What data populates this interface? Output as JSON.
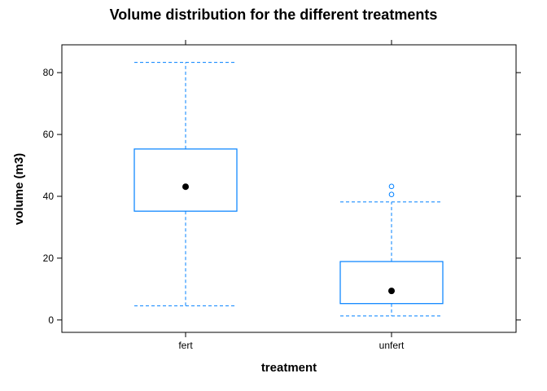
{
  "chart_data": {
    "type": "box",
    "title": "Volume distribution for the different treatments",
    "xlabel": "treatment",
    "ylabel": "volume (m3)",
    "categories": [
      "fert",
      "unfert"
    ],
    "ylim": [
      -4,
      89
    ],
    "yticks": [
      0,
      20,
      40,
      60,
      80
    ],
    "grid": false,
    "boxes": [
      {
        "category": "fert",
        "whisker_low": 4.6,
        "q1": 35.2,
        "median": 43.1,
        "q3": 55.3,
        "whisker_high": 83.3,
        "outliers": []
      },
      {
        "category": "unfert",
        "whisker_low": 1.3,
        "q1": 5.3,
        "median": 9.4,
        "q3": 18.9,
        "whisker_high": 38.2,
        "outliers": [
          40.6,
          43.2
        ]
      }
    ],
    "colors": {
      "box": "#0080ff",
      "median": "#000000",
      "axis": "#000000"
    }
  }
}
